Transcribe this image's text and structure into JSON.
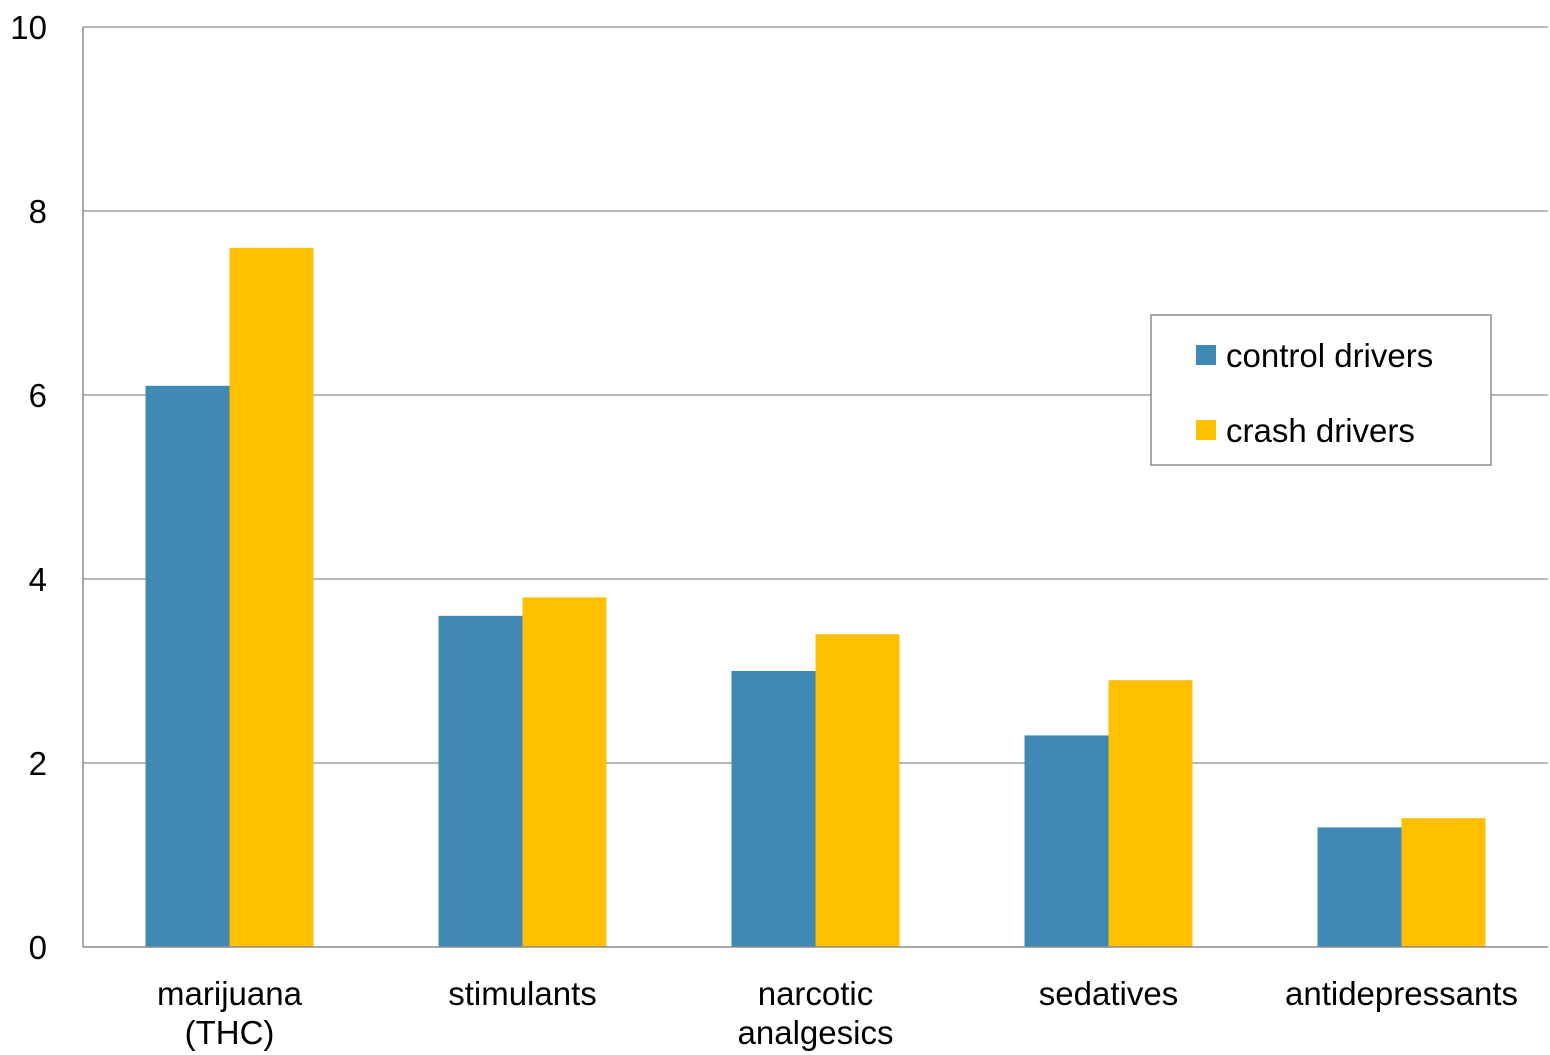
{
  "chart_data": {
    "type": "bar",
    "title": "",
    "xlabel": "",
    "ylabel": "",
    "categories": [
      [
        "marijuana",
        "(THC)"
      ],
      [
        "stimulants"
      ],
      [
        "narcotic",
        "analgesics"
      ],
      [
        "sedatives"
      ],
      [
        "antidepressants"
      ]
    ],
    "series": [
      {
        "name": "control drivers",
        "color": "#4189B5",
        "values": [
          6.1,
          3.6,
          3.0,
          2.3,
          1.3
        ]
      },
      {
        "name": "crash drivers",
        "color": "#FFC000",
        "values": [
          7.6,
          3.8,
          3.4,
          2.9,
          1.4
        ]
      }
    ],
    "ylim": [
      0,
      10
    ],
    "yticks": [
      0,
      2,
      4,
      6,
      8,
      10
    ],
    "grid": true,
    "legend_position": "right"
  }
}
